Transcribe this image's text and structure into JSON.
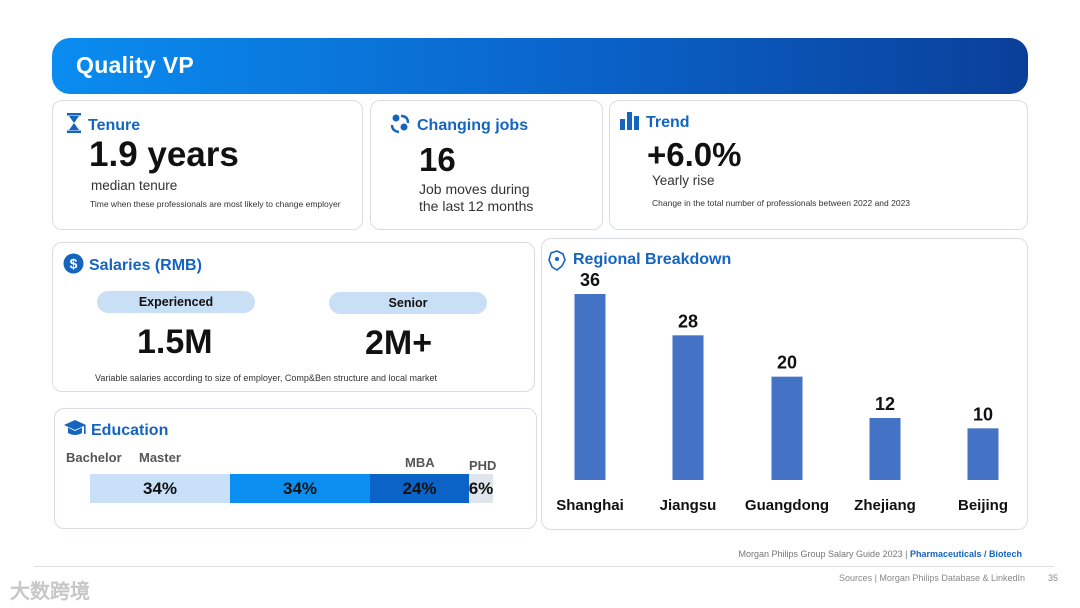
{
  "header": {
    "title": "Quality VP"
  },
  "tenure": {
    "title": "Tenure",
    "value": "1.9 years",
    "label": "median tenure",
    "note": "Time when these professionals are most likely to  change employer"
  },
  "changing_jobs": {
    "title": "Changing jobs",
    "value": "16",
    "label_line1": "Job moves during",
    "label_line2": "the last 12 months"
  },
  "trend": {
    "title": "Trend",
    "value": "+6.0%",
    "label": "Yearly rise",
    "note": "Change in the total number of professionals between 2022 and 2023"
  },
  "salaries": {
    "title": "Salaries (RMB)",
    "experienced_label": "Experienced",
    "experienced_value": "1.5M",
    "senior_label": "Senior",
    "senior_value": "2M+",
    "note": "Variable salaries according to size of employer, Comp&Ben structure and local market"
  },
  "education": {
    "title": "Education",
    "segments": [
      {
        "label": "Bachelor",
        "value": "34%",
        "percent": 34,
        "color": "#c8e1f8"
      },
      {
        "label": "Master",
        "value": "34%",
        "percent": 34,
        "color": "#0a8ff0"
      },
      {
        "label": "MBA",
        "value": "24%",
        "percent": 24,
        "color": "#0b63c8"
      },
      {
        "label": "PHD",
        "value": "6%",
        "percent": 6,
        "color": "#dfe5ec"
      }
    ]
  },
  "chart_data": {
    "type": "bar",
    "title": "Regional Breakdown",
    "categories": [
      "Shanghai",
      "Jiangsu",
      "Guangdong",
      "Zhejiang",
      "Beijing"
    ],
    "values": [
      36,
      28,
      20,
      12,
      10
    ],
    "ylim": [
      0,
      36
    ],
    "bar_color": "#4472c4",
    "xlabel": "",
    "ylabel": ""
  },
  "footer": {
    "guide": "Morgan Philips Group Salary Guide 2023 |",
    "sector": "Pharmaceuticals / Biotech",
    "sources": "Sources | Morgan Philips Database & LinkedIn",
    "page": "35",
    "watermark": "大数跨境"
  }
}
